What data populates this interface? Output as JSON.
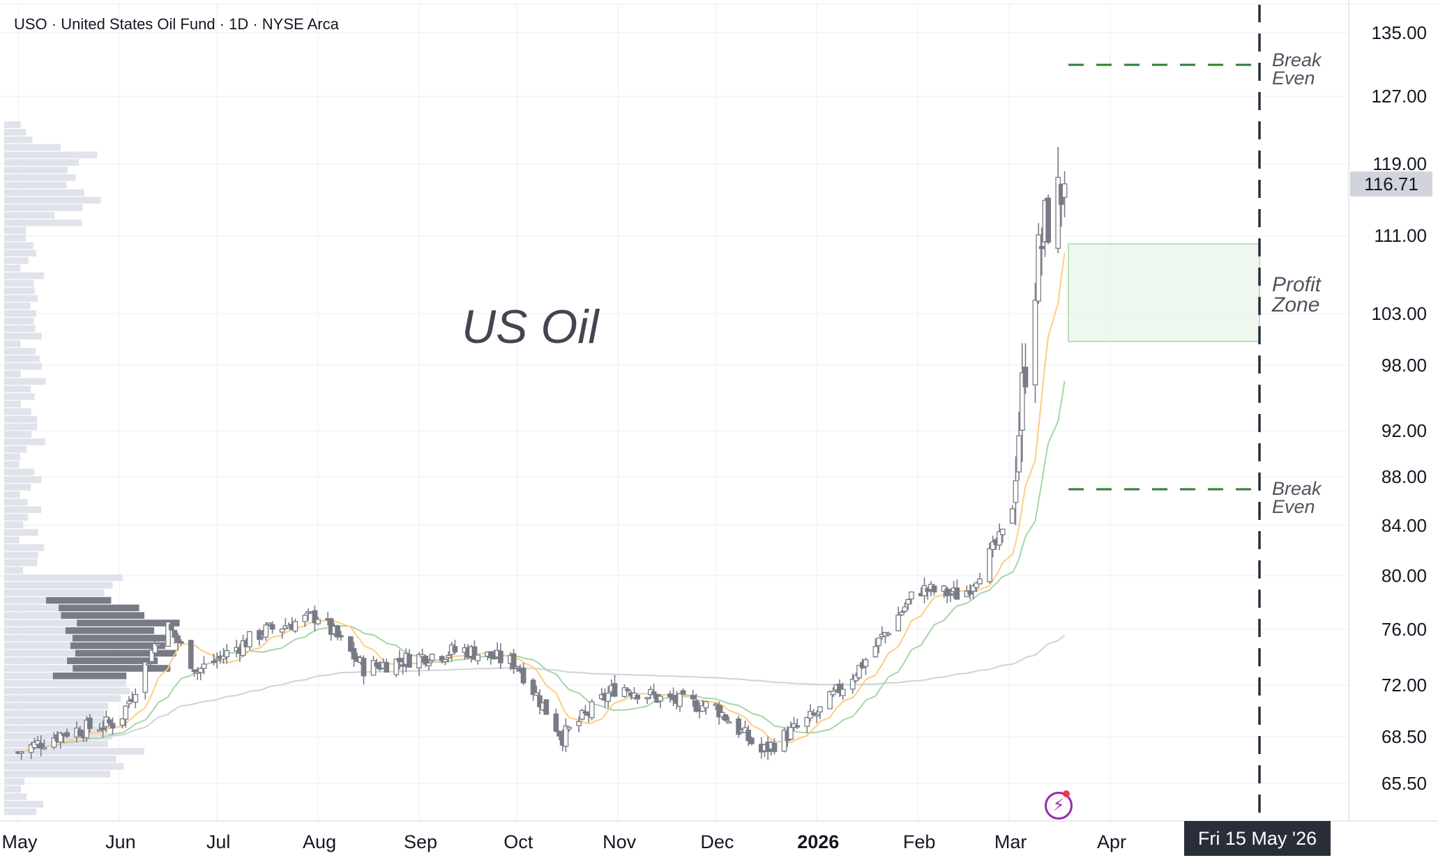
{
  "header": {
    "symbol_line": "USO · United States Oil Fund · 1D · NYSE Arca"
  },
  "annotations": {
    "chart_text": "US Oil",
    "break_even_upper": [
      "Break",
      "Even"
    ],
    "profit_zone": [
      "Profit",
      "Zone"
    ],
    "break_even_lower": [
      "Break",
      "Even"
    ]
  },
  "price_axis": {
    "ticks": [
      "135.00",
      "127.00",
      "119.00",
      "111.00",
      "103.00",
      "98.00",
      "92.00",
      "88.00",
      "84.00",
      "80.00",
      "76.00",
      "72.00",
      "68.50",
      "65.50"
    ],
    "last_price": "116.71"
  },
  "time_axis": {
    "ticks": [
      "May",
      "Jun",
      "Jul",
      "Aug",
      "Sep",
      "Oct",
      "Nov",
      "Dec",
      "2026",
      "Feb",
      "Mar",
      "Apr"
    ],
    "cursor_date": "Fri 15 May '26"
  },
  "colors": {
    "candle_fill_up": "#ffffff",
    "candle_fill_down": "#787b86",
    "candle_border": "#787b86",
    "ma_fast": "#ffcc80",
    "ma_mid": "#a5d6a7",
    "ma_slow": "#cfd2d9",
    "break_even_line": "#2e7d32",
    "profit_zone_fill": "#e8f5e9",
    "profit_zone_border": "#a5d6a7",
    "vertical_marker": "#2a2e39",
    "volume_profile_light": "#e0e3eb",
    "volume_profile_dark": "#787b86"
  },
  "icons": {
    "bolt": "lightning-bolt-icon"
  },
  "chart_data": {
    "type": "candlestick",
    "y_scale": "log",
    "ylim": [
      63.0,
      138.0
    ],
    "x_range": [
      "2025-05-01",
      "2026-05-31"
    ],
    "vertical_marker_date": "2026-05-15",
    "break_even_levels": [
      131.0,
      87.0
    ],
    "profit_zone": [
      101.0,
      109.5
    ],
    "last_price": 116.71,
    "monthly_closes": [
      {
        "date": "2025-05-01",
        "close": 67.5
      },
      {
        "date": "2025-05-15",
        "close": 68.8
      },
      {
        "date": "2025-06-01",
        "close": 69.5
      },
      {
        "date": "2025-06-15",
        "close": 76.5
      },
      {
        "date": "2025-06-25",
        "close": 73.0
      },
      {
        "date": "2025-07-15",
        "close": 75.8
      },
      {
        "date": "2025-08-01",
        "close": 77.0
      },
      {
        "date": "2025-08-15",
        "close": 73.2
      },
      {
        "date": "2025-09-01",
        "close": 74.0
      },
      {
        "date": "2025-09-15",
        "close": 74.5
      },
      {
        "date": "2025-10-01",
        "close": 73.5
      },
      {
        "date": "2025-10-15",
        "close": 68.5
      },
      {
        "date": "2025-11-01",
        "close": 72.0
      },
      {
        "date": "2025-11-15",
        "close": 71.0
      },
      {
        "date": "2025-12-01",
        "close": 70.5
      },
      {
        "date": "2025-12-15",
        "close": 67.5
      },
      {
        "date": "2026-01-01",
        "close": 70.0
      },
      {
        "date": "2026-01-15",
        "close": 73.5
      },
      {
        "date": "2026-02-01",
        "close": 79.0
      },
      {
        "date": "2026-02-15",
        "close": 78.5
      },
      {
        "date": "2026-03-01",
        "close": 84.0
      },
      {
        "date": "2026-03-08",
        "close": 105.0
      },
      {
        "date": "2026-03-12",
        "close": 112.0
      },
      {
        "date": "2026-03-18",
        "close": 116.71
      }
    ]
  }
}
